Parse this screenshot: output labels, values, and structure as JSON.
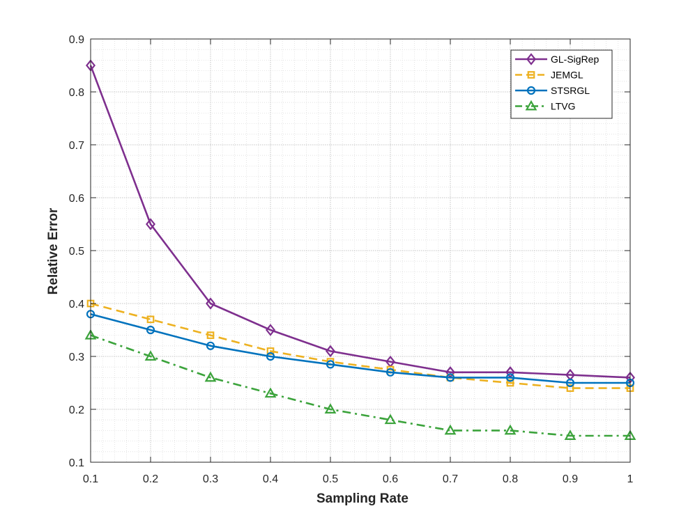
{
  "chart_data": {
    "type": "line",
    "title": "",
    "xlabel": "Sampling Rate",
    "ylabel": "Relative Error",
    "xlim": [
      0.1,
      1.0
    ],
    "ylim": [
      0.1,
      0.9
    ],
    "x": [
      0.1,
      0.2,
      0.3,
      0.4,
      0.5,
      0.6,
      0.7,
      0.8,
      0.9,
      1.0
    ],
    "x_tick_labels": [
      "0.1",
      "0.2",
      "0.3",
      "0.4",
      "0.5",
      "0.6",
      "0.7",
      "0.8",
      "0.9",
      "1"
    ],
    "y_ticks": [
      0.1,
      0.2,
      0.3,
      0.4,
      0.5,
      0.6,
      0.7,
      0.8,
      0.9
    ],
    "y_tick_labels": [
      "0.1",
      "0.2",
      "0.3",
      "0.4",
      "0.5",
      "0.6",
      "0.7",
      "0.8",
      "0.9"
    ],
    "grid": "major and minor, dotted",
    "legend_position": "top-right",
    "series": [
      {
        "name": "GL-SigRep",
        "color": "#7E2F8E",
        "line_style": "solid",
        "marker": "diamond",
        "values": [
          0.85,
          0.55,
          0.4,
          0.35,
          0.31,
          0.29,
          0.27,
          0.27,
          0.265,
          0.26
        ]
      },
      {
        "name": "JEMGL",
        "color": "#EDB120",
        "line_style": "dashed",
        "marker": "square",
        "values": [
          0.4,
          0.37,
          0.34,
          0.31,
          0.29,
          0.275,
          0.26,
          0.25,
          0.24,
          0.24
        ]
      },
      {
        "name": "STSRGL",
        "color": "#0072BD",
        "line_style": "solid",
        "marker": "circle",
        "values": [
          0.38,
          0.35,
          0.32,
          0.3,
          0.285,
          0.27,
          0.26,
          0.26,
          0.25,
          0.25
        ]
      },
      {
        "name": "LTVG",
        "color": "#3BA33B",
        "line_style": "dashdot",
        "marker": "triangle",
        "values": [
          0.34,
          0.3,
          0.26,
          0.23,
          0.2,
          0.18,
          0.16,
          0.16,
          0.15,
          0.15
        ]
      }
    ]
  }
}
